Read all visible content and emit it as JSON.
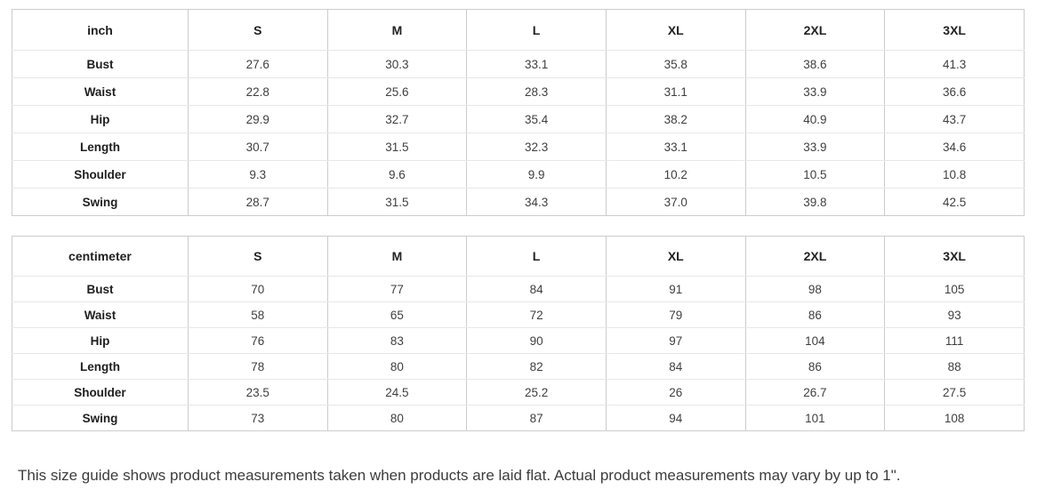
{
  "tables": [
    {
      "unit_label": "inch",
      "columns": [
        "S",
        "M",
        "L",
        "XL",
        "2XL",
        "3XL"
      ],
      "rows": [
        {
          "label": "Bust",
          "values": [
            "27.6",
            "30.3",
            "33.1",
            "35.8",
            "38.6",
            "41.3"
          ]
        },
        {
          "label": "Waist",
          "values": [
            "22.8",
            "25.6",
            "28.3",
            "31.1",
            "33.9",
            "36.6"
          ]
        },
        {
          "label": "Hip",
          "values": [
            "29.9",
            "32.7",
            "35.4",
            "38.2",
            "40.9",
            "43.7"
          ]
        },
        {
          "label": "Length",
          "values": [
            "30.7",
            "31.5",
            "32.3",
            "33.1",
            "33.9",
            "34.6"
          ]
        },
        {
          "label": "Shoulder",
          "values": [
            "9.3",
            "9.6",
            "9.9",
            "10.2",
            "10.5",
            "10.8"
          ]
        },
        {
          "label": "Swing",
          "values": [
            "28.7",
            "31.5",
            "34.3",
            "37.0",
            "39.8",
            "42.5"
          ]
        }
      ]
    },
    {
      "unit_label": "centimeter",
      "columns": [
        "S",
        "M",
        "L",
        "XL",
        "2XL",
        "3XL"
      ],
      "rows": [
        {
          "label": "Bust",
          "values": [
            "70",
            "77",
            "84",
            "91",
            "98",
            "105"
          ]
        },
        {
          "label": "Waist",
          "values": [
            "58",
            "65",
            "72",
            "79",
            "86",
            "93"
          ]
        },
        {
          "label": "Hip",
          "values": [
            "76",
            "83",
            "90",
            "97",
            "104",
            "111"
          ]
        },
        {
          "label": "Length",
          "values": [
            "78",
            "80",
            "82",
            "84",
            "86",
            "88"
          ]
        },
        {
          "label": "Shoulder",
          "values": [
            "23.5",
            "24.5",
            "25.2",
            "26",
            "26.7",
            "27.5"
          ]
        },
        {
          "label": "Swing",
          "values": [
            "73",
            "80",
            "87",
            "94",
            "101",
            "108"
          ]
        }
      ]
    }
  ],
  "footer": {
    "note": "This size guide shows product measurements taken when products are laid flat. Actual product measurements may vary by up to 1\"."
  }
}
